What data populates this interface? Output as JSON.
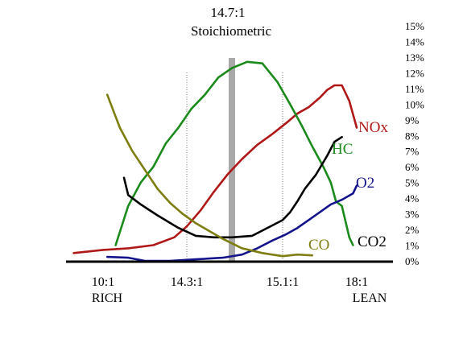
{
  "chart_data": {
    "type": "line",
    "title": "14.7:1",
    "subtitle": "Stoichiometric",
    "xlabel": "",
    "ylabel": "",
    "x_tick_labels": [
      "10:1",
      "14.3:1",
      "15.1:1",
      "18:1"
    ],
    "x_side_labels": [
      "RICH",
      "LEAN"
    ],
    "y_tick_labels": [
      "0%",
      "1%",
      "2%",
      "3%",
      "4%",
      "5%",
      "6%",
      "7%",
      "8%",
      "9%",
      "10%",
      "11%",
      "12%",
      "13%",
      "14%",
      "15%"
    ],
    "ylim": [
      0,
      15
    ],
    "x_positions": {
      "10:1": 0,
      "14.3:1": 1,
      "14.7:1": 1.5,
      "15.1:1": 2,
      "18:1": 3
    },
    "xlim": [
      -0.35,
      3.2
    ],
    "grid": false,
    "vertical_markers": [
      {
        "x": 1,
        "style": "dotted"
      },
      {
        "x": 1.5,
        "style": "bar"
      },
      {
        "x": 2,
        "style": "dotted"
      }
    ],
    "series": [
      {
        "name": "NOx",
        "color": "#b01818",
        "x": [
          -0.35,
          0.0,
          0.3,
          0.6,
          0.85,
          1.0,
          1.15,
          1.3,
          1.45,
          1.6,
          1.75,
          1.9,
          2.05,
          2.2,
          2.35,
          2.5,
          2.6,
          2.7,
          2.8,
          2.9,
          3.0
        ],
        "y": [
          0.5,
          0.7,
          0.8,
          1.0,
          1.5,
          2.2,
          3.2,
          4.4,
          5.5,
          6.5,
          7.4,
          8.1,
          8.8,
          9.4,
          9.8,
          10.4,
          10.9,
          11.2,
          11.2,
          10.2,
          8.5
        ]
      },
      {
        "name": "HC",
        "color": "#1a8a1a",
        "x": [
          0.15,
          0.3,
          0.45,
          0.6,
          0.75,
          0.9,
          1.05,
          1.2,
          1.35,
          1.5,
          1.65,
          1.8,
          1.95,
          2.1,
          2.25,
          2.4,
          2.55,
          2.65,
          2.72,
          2.8,
          2.9,
          2.95
        ],
        "y": [
          1.0,
          3.5,
          5.0,
          6.0,
          7.5,
          8.5,
          9.7,
          10.6,
          11.7,
          12.3,
          12.7,
          12.6,
          11.4,
          10.0,
          8.7,
          7.3,
          6.0,
          5.0,
          3.8,
          3.5,
          1.5,
          1.0
        ]
      },
      {
        "name": "O2",
        "color": "#14148c",
        "x": [
          0.05,
          0.3,
          0.5,
          0.8,
          1.1,
          1.4,
          1.6,
          1.75,
          1.9,
          2.05,
          2.2,
          2.35,
          2.5,
          2.65,
          2.8,
          2.95,
          3.0
        ],
        "y": [
          0.25,
          0.2,
          0.0,
          0.0,
          0.1,
          0.2,
          0.4,
          0.8,
          1.3,
          1.7,
          2.1,
          2.6,
          3.1,
          3.6,
          3.9,
          4.3,
          4.8
        ]
      },
      {
        "name": "CO2",
        "color": "#000000",
        "x": [
          0.25,
          0.3,
          0.45,
          0.65,
          0.9,
          1.1,
          1.3,
          1.5,
          1.7,
          1.85,
          2.0,
          2.1,
          2.2,
          2.3,
          2.45,
          2.6,
          2.7,
          2.8
        ],
        "y": [
          5.3,
          4.2,
          3.6,
          2.9,
          2.1,
          1.6,
          1.5,
          1.5,
          1.6,
          2.1,
          2.6,
          3.1,
          3.8,
          4.6,
          5.5,
          6.7,
          7.6,
          7.9
        ]
      },
      {
        "name": "CO",
        "color": "#7d7d10",
        "x": [
          0.05,
          0.2,
          0.35,
          0.5,
          0.65,
          0.8,
          0.95,
          1.1,
          1.25,
          1.4,
          1.6,
          1.8,
          2.0,
          2.2,
          2.4
        ],
        "y": [
          10.6,
          8.5,
          7.0,
          5.8,
          4.6,
          3.7,
          3.0,
          2.4,
          1.9,
          1.4,
          0.8,
          0.5,
          0.3,
          0.4,
          0.35
        ]
      }
    ],
    "series_labels": [
      "NOx",
      "HC",
      "O2",
      "CO",
      "CO2"
    ]
  }
}
